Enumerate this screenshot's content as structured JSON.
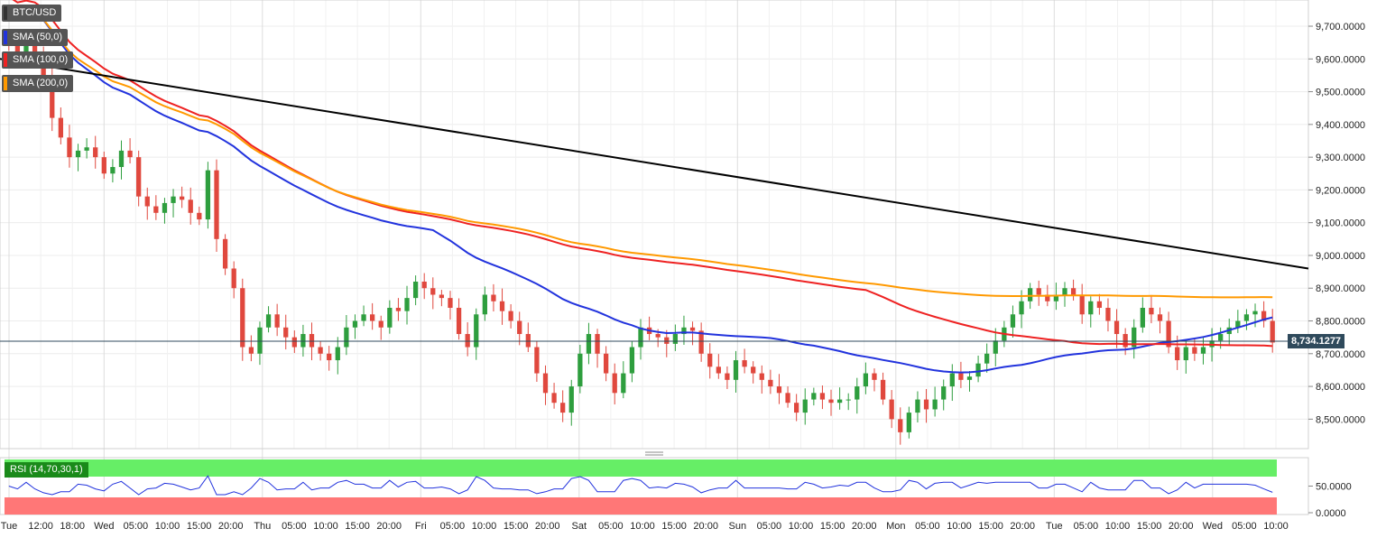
{
  "symbol": "BTC/USD",
  "indicators": [
    {
      "label": "SMA (50,0)",
      "color": "#2233dd"
    },
    {
      "label": "SMA (100,0)",
      "color": "#ee2222"
    },
    {
      "label": "SMA (200,0)",
      "color": "#ff9900"
    }
  ],
  "rsi_label": "RSI (14,70,30,1)",
  "current_price": "8,734.1277",
  "price_axis": [
    "9,700.0000",
    "9,600.0000",
    "9,500.0000",
    "9,400.0000",
    "9,300.0000",
    "9,200.0000",
    "9,100.0000",
    "9,000.0000",
    "8,900.0000",
    "8,800.0000",
    "8,700.0000",
    "8,600.0000",
    "8,500.0000"
  ],
  "rsi_axis": [
    "50.0000",
    "0.0000"
  ],
  "time_axis": [
    "Tue",
    "12:00",
    "18:00",
    "Wed",
    "05:00",
    "10:00",
    "15:00",
    "20:00",
    "Thu",
    "05:00",
    "10:00",
    "15:00",
    "20:00",
    "Fri",
    "05:00",
    "10:00",
    "15:00",
    "20:00",
    "Sat",
    "05:00",
    "10:00",
    "15:00",
    "20:00",
    "Sun",
    "05:00",
    "10:00",
    "15:00",
    "20:00",
    "Mon",
    "05:00",
    "10:00",
    "15:00",
    "20:00",
    "Tue",
    "05:00",
    "10:00",
    "15:00",
    "20:00",
    "Wed",
    "05:00",
    "10:00"
  ],
  "colors": {
    "up": "#2e9e3e",
    "down": "#e0483e",
    "trend": "#000000",
    "rsi_line": "#2233dd",
    "overbought": "#66ee66",
    "oversold": "#ff7777"
  },
  "chart_data": {
    "type": "candlestick",
    "title": "BTC/USD",
    "ylim": [
      8410,
      9780
    ],
    "rsi_ylim": [
      0,
      100
    ],
    "x_start": "Tue 09:00",
    "x_end": "Wed 10:00",
    "candle_interval": "hourly",
    "closes": [
      9640,
      9610,
      9650,
      9620,
      9550,
      9420,
      9360,
      9300,
      9320,
      9330,
      9300,
      9250,
      9270,
      9320,
      9300,
      9180,
      9150,
      9130,
      9160,
      9180,
      9170,
      9130,
      9110,
      9260,
      9050,
      8960,
      8900,
      8720,
      8700,
      8780,
      8820,
      8780,
      8750,
      8720,
      8760,
      8720,
      8700,
      8680,
      8720,
      8780,
      8800,
      8820,
      8800,
      8780,
      8840,
      8830,
      8870,
      8920,
      8900,
      8880,
      8870,
      8840,
      8760,
      8720,
      8820,
      8880,
      8860,
      8830,
      8800,
      8760,
      8720,
      8640,
      8580,
      8550,
      8520,
      8600,
      8700,
      8760,
      8700,
      8640,
      8580,
      8640,
      8720,
      8780,
      8760,
      8750,
      8730,
      8760,
      8780,
      8770,
      8700,
      8660,
      8640,
      8620,
      8680,
      8660,
      8640,
      8620,
      8600,
      8580,
      8550,
      8520,
      8560,
      8580,
      8560,
      8550,
      8560,
      8560,
      8600,
      8640,
      8620,
      8560,
      8500,
      8460,
      8520,
      8560,
      8530,
      8560,
      8600,
      8640,
      8620,
      8630,
      8670,
      8700,
      8740,
      8780,
      8820,
      8860,
      8900,
      8880,
      8860,
      8880,
      8900,
      8880,
      8820,
      8860,
      8840,
      8800,
      8760,
      8720,
      8780,
      8840,
      8820,
      8800,
      8720,
      8680,
      8720,
      8700,
      8720,
      8740,
      8760,
      8780,
      8800,
      8820,
      8830,
      8800,
      8734
    ],
    "sma50_ends": [
      9760,
      8810
    ],
    "sma100_ends": [
      9790,
      8710
    ],
    "sma200_ends": [
      9750,
      8840
    ],
    "rsi_level_end": 48
  }
}
